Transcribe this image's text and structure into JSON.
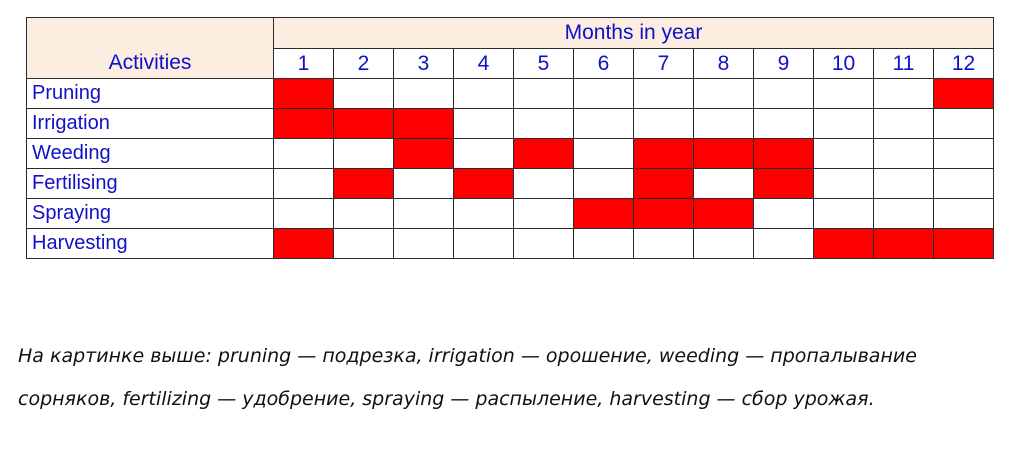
{
  "table": {
    "activities_header": "Activities",
    "months_header": "Months in year",
    "months": [
      "1",
      "2",
      "3",
      "4",
      "5",
      "6",
      "7",
      "8",
      "9",
      "10",
      "11",
      "12"
    ],
    "active_color": "#ff0000",
    "header_background": "#fbeee0",
    "text_color": "#1010c8",
    "rows": [
      {
        "activity": "Pruning",
        "active_months": [
          1,
          12
        ]
      },
      {
        "activity": "Irrigation",
        "active_months": [
          1,
          2,
          3
        ]
      },
      {
        "activity": "Weeding",
        "active_months": [
          3,
          5,
          7,
          8,
          9
        ]
      },
      {
        "activity": "Fertilising",
        "active_months": [
          2,
          4,
          7,
          9
        ]
      },
      {
        "activity": "Spraying",
        "active_months": [
          6,
          7,
          8
        ]
      },
      {
        "activity": "Harvesting",
        "active_months": [
          1,
          10,
          11,
          12
        ]
      }
    ]
  },
  "note": "На картинке выше: pruning — подрезка, irrigation — орошение, weeding — пропалывание сорняков, fertilizing — удобрение, spraying — распыление, harvesting — сбор урожая."
}
